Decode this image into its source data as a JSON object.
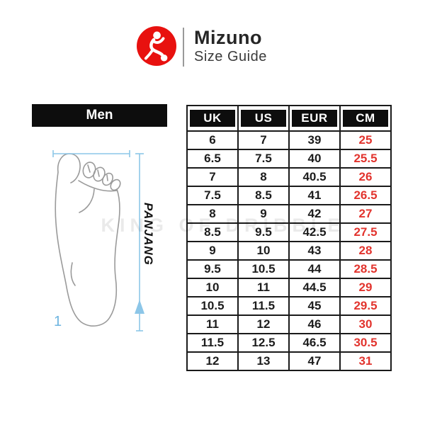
{
  "header": {
    "brand": "Mizuno",
    "subtitle": "Size Guide",
    "logo_icon": "runner-kicking-ball-icon",
    "logo_color": "#e8110f"
  },
  "panel": {
    "gender_label": "Men"
  },
  "diagram": {
    "length_label": "PANJANG",
    "footnote_label": "1",
    "measure_color": "#8cc6e8",
    "foot_outline_color": "#9a9a9a"
  },
  "watermark": "KING OF DRIBBLE",
  "table": {
    "columns": [
      "UK",
      "US",
      "EUR",
      "CM"
    ],
    "header_bg": "#0d0d0d",
    "header_text_color": "#ffffff",
    "cm_text_color": "#e2342e",
    "rows": [
      [
        "6",
        "7",
        "39",
        "25"
      ],
      [
        "6.5",
        "7.5",
        "40",
        "25.5"
      ],
      [
        "7",
        "8",
        "40.5",
        "26"
      ],
      [
        "7.5",
        "8.5",
        "41",
        "26.5"
      ],
      [
        "8",
        "9",
        "42",
        "27"
      ],
      [
        "8.5",
        "9.5",
        "42.5",
        "27.5"
      ],
      [
        "9",
        "10",
        "43",
        "28"
      ],
      [
        "9.5",
        "10.5",
        "44",
        "28.5"
      ],
      [
        "10",
        "11",
        "44.5",
        "29"
      ],
      [
        "10.5",
        "11.5",
        "45",
        "29.5"
      ],
      [
        "11",
        "12",
        "46",
        "30"
      ],
      [
        "11.5",
        "12.5",
        "46.5",
        "30.5"
      ],
      [
        "12",
        "13",
        "47",
        "31"
      ]
    ]
  }
}
